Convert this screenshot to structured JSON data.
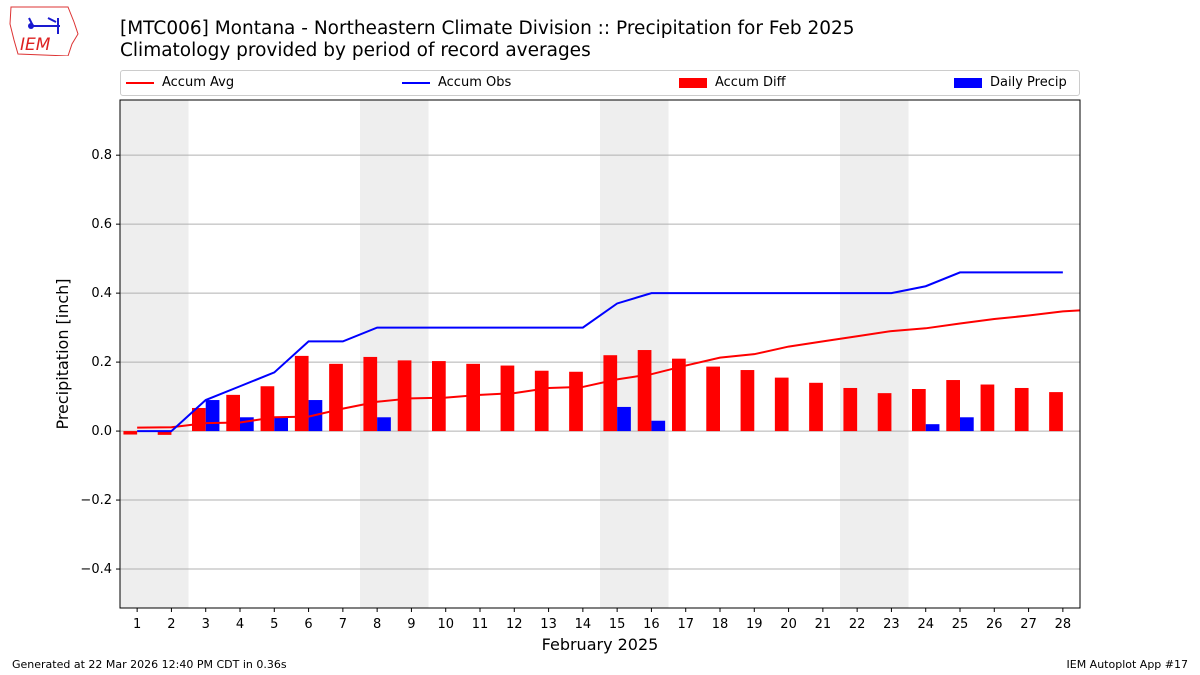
{
  "title_line1": "[MTC006] Montana - Northeastern Climate Division :: Precipitation for Feb 2025",
  "title_line2": "Climatology provided by period of record averages",
  "logo_text": "IEM",
  "footer_left": "Generated at 22 Mar 2026 12:40 PM CDT in 0.36s",
  "footer_right": "IEM Autoplot App #17",
  "colors": {
    "avg": "#ff0000",
    "obs": "#0000ff",
    "diff": "#ff0000",
    "daily": "#0000ff",
    "weekend": "#eeeeee"
  },
  "chart_data": {
    "type": "bar",
    "xlabel": "February 2025",
    "ylabel": "Precipitation [inch]",
    "xlim": [
      0.5,
      28.5
    ],
    "ylim": [
      -0.513,
      0.96
    ],
    "yticks": [
      -0.4,
      -0.2,
      0.0,
      0.2,
      0.4,
      0.6,
      0.8
    ],
    "ytick_labels": [
      "−0.4",
      "−0.2",
      "0.0",
      "0.2",
      "0.4",
      "0.6",
      "0.8"
    ],
    "x": [
      1,
      2,
      3,
      4,
      5,
      6,
      7,
      8,
      9,
      10,
      11,
      12,
      13,
      14,
      15,
      16,
      17,
      18,
      19,
      20,
      21,
      22,
      23,
      24,
      25,
      26,
      27,
      28
    ],
    "weekend_spans": [
      [
        0.5,
        2.5
      ],
      [
        7.5,
        9.5
      ],
      [
        14.5,
        16.5
      ],
      [
        21.5,
        23.5
      ]
    ],
    "grid": "y",
    "legend_placement": "top",
    "series": [
      {
        "name": "Accum Avg",
        "type": "line",
        "values": [
          0.01,
          0.011,
          0.023,
          0.025,
          0.04,
          0.042,
          0.065,
          0.085,
          0.095,
          0.097,
          0.105,
          0.11,
          0.125,
          0.128,
          0.15,
          0.165,
          0.19,
          0.213,
          0.223,
          0.245,
          0.26,
          0.275,
          0.29,
          0.298,
          0.312,
          0.325,
          0.335,
          0.347
        ],
        "end_value": 0.35
      },
      {
        "name": "Accum Obs",
        "type": "line",
        "values": [
          0,
          0,
          0.09,
          0.13,
          0.17,
          0.26,
          0.26,
          0.3,
          0.3,
          0.3,
          0.3,
          0.3,
          0.3,
          0.3,
          0.37,
          0.4,
          0.4,
          0.4,
          0.4,
          0.4,
          0.4,
          0.4,
          0.4,
          0.42,
          0.46,
          0.46,
          0.46,
          0.46
        ]
      },
      {
        "name": "Accum Diff",
        "type": "bar",
        "values": [
          -0.01,
          -0.011,
          0.067,
          0.105,
          0.13,
          0.218,
          0.195,
          0.215,
          0.205,
          0.203,
          0.195,
          0.19,
          0.175,
          0.172,
          0.22,
          0.235,
          0.21,
          0.187,
          0.177,
          0.155,
          0.14,
          0.125,
          0.11,
          0.122,
          0.148,
          0.135,
          0.125,
          0.113
        ]
      },
      {
        "name": "Daily Precip",
        "type": "bar",
        "values": [
          0,
          0,
          0.09,
          0.04,
          0.04,
          0.09,
          0,
          0.04,
          0,
          0,
          0,
          0,
          0,
          0,
          0.07,
          0.03,
          0,
          0,
          0,
          0,
          0,
          0,
          0,
          0.02,
          0.04,
          0,
          0,
          0
        ]
      }
    ]
  }
}
